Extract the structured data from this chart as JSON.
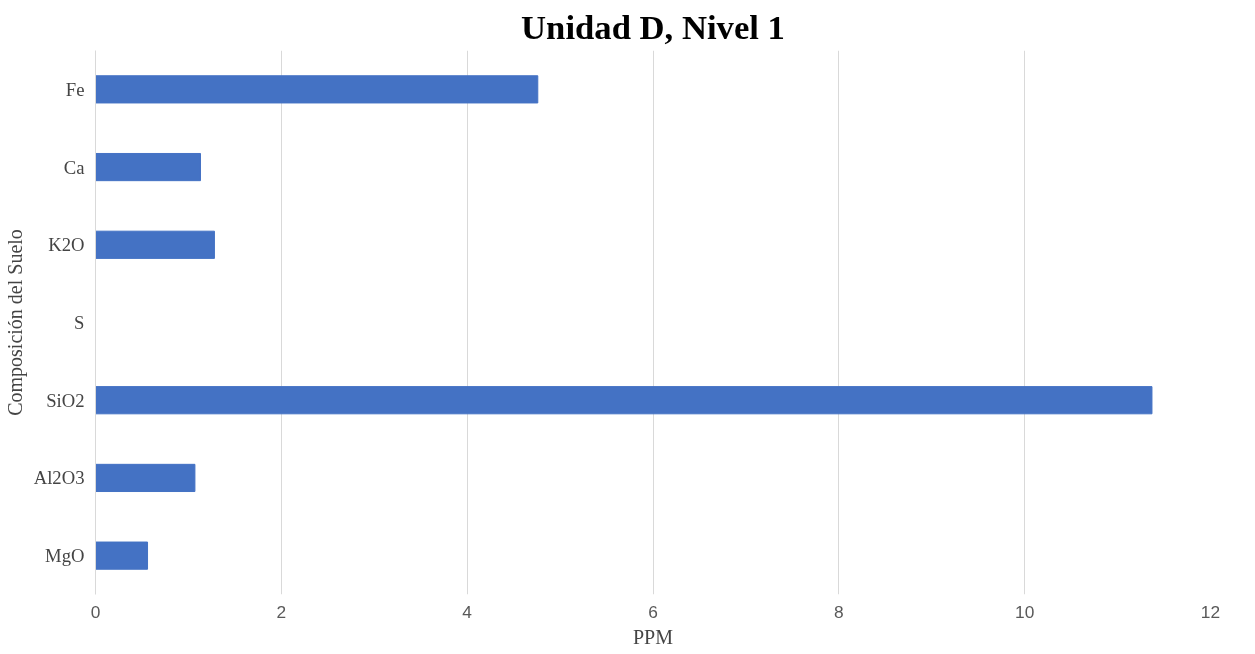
{
  "chart_data": {
    "type": "bar",
    "orientation": "horizontal",
    "title": "Unidad D, Nivel 1",
    "xlabel": "PPM",
    "ylabel": "Composición del Suelo",
    "categories": [
      "Fe",
      "Ca",
      "K2O",
      "S",
      "SiO2",
      "Al2O3",
      "MgO"
    ],
    "values": [
      4.76,
      1.13,
      1.28,
      0,
      11.37,
      1.07,
      0.56
    ],
    "color": "#4472c4",
    "xlim": [
      0,
      12
    ],
    "xticks": [
      0,
      2,
      4,
      6,
      8,
      10,
      12
    ],
    "grid": "x"
  }
}
